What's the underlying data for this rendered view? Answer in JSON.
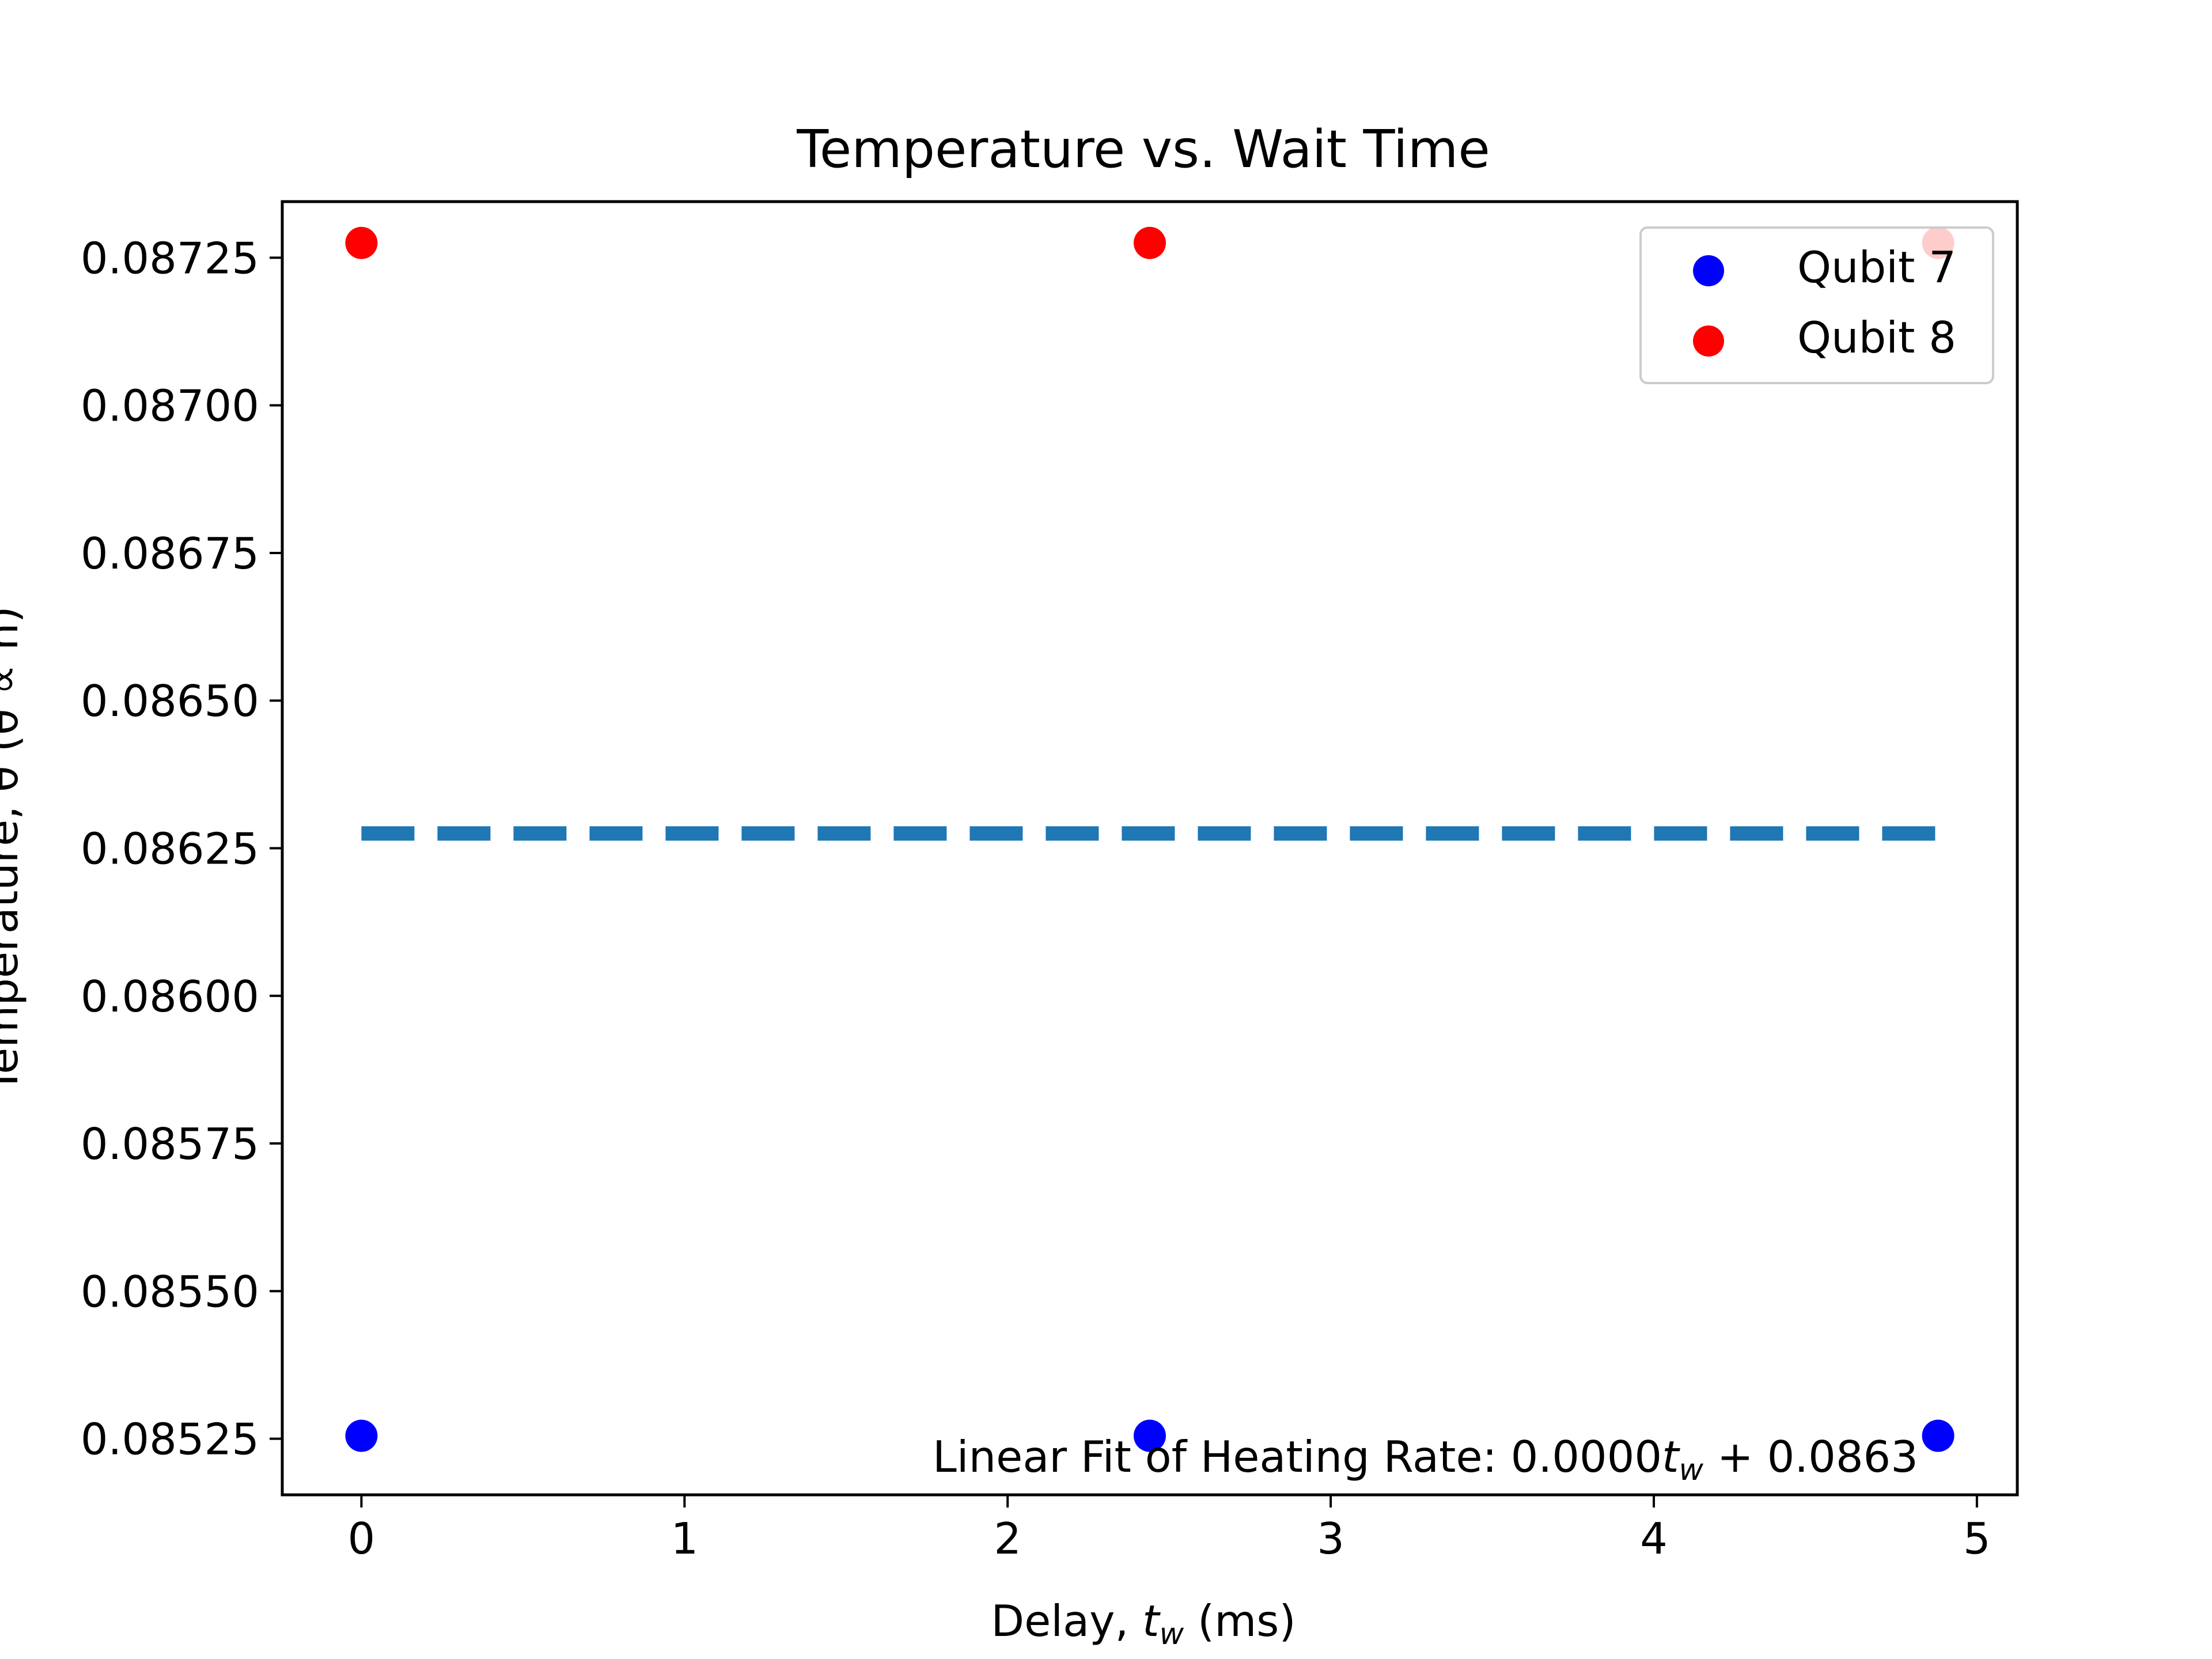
{
  "chart_data": {
    "type": "scatter",
    "title": "Temperature vs. Wait Time",
    "xlabel_prefix": "Delay, ",
    "xlabel_var": "t",
    "xlabel_sub": "w",
    "xlabel_suffix": " (ms)",
    "ylabel": "Temperature, θ (θ ∝ n)",
    "xlim": [
      -0.245,
      5.125
    ],
    "ylim": [
      0.085155,
      0.087345
    ],
    "xticks": [
      0,
      1,
      2,
      3,
      4,
      5
    ],
    "xtick_labels": [
      "0",
      "1",
      "2",
      "3",
      "4",
      "5"
    ],
    "yticks": [
      0.08525,
      0.0855,
      0.08575,
      0.086,
      0.08625,
      0.0865,
      0.08675,
      0.087,
      0.08725
    ],
    "ytick_labels": [
      "0.08525",
      "0.08550",
      "0.08575",
      "0.08600",
      "0.08625",
      "0.08650",
      "0.08675",
      "0.08700",
      "0.08725"
    ],
    "series": [
      {
        "name": "Qubit 7",
        "color": "#0000ff",
        "x": [
          0,
          2.44,
          4.88
        ],
        "y": [
          0.085255,
          0.085255,
          0.085255
        ]
      },
      {
        "name": "Qubit 8",
        "color": "#ff0000",
        "x": [
          0,
          2.44,
          4.88
        ],
        "y": [
          0.087275,
          0.087275,
          0.087275
        ]
      }
    ],
    "fit_line": {
      "color": "#1f77b4",
      "style": "dashed",
      "x": [
        0,
        4.88
      ],
      "y": [
        0.086275,
        0.086275
      ]
    },
    "annotation": {
      "prefix": "Linear Fit of Heating Rate: 0.0000",
      "var": "t",
      "sub": "w",
      "suffix": " + 0.0863"
    },
    "legend": {
      "position": "top-right",
      "entries": [
        "Qubit 7",
        "Qubit 8"
      ]
    },
    "grid": false
  }
}
